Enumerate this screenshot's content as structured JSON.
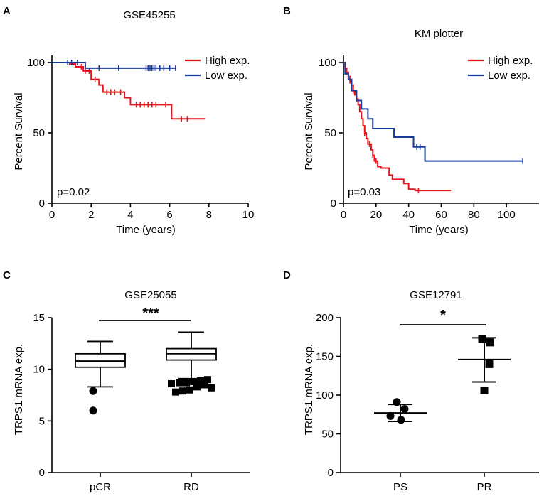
{
  "chart_data": [
    {
      "panel": "A",
      "type": "line",
      "subtype": "kaplan-meier",
      "title": "GSE45255",
      "xlabel": "Time (years)",
      "ylabel": "Percent Survival",
      "xlim": [
        0,
        10
      ],
      "ylim": [
        0,
        100
      ],
      "xticks": [
        "0",
        "2",
        "4",
        "6",
        "8",
        "10"
      ],
      "yticks": [
        "0",
        "50",
        "100"
      ],
      "xtick_values": [
        0,
        2,
        4,
        6,
        8,
        10
      ],
      "ytick_values": [
        0,
        50,
        100
      ],
      "annotation": "p=0.02",
      "legend_position": "top-right",
      "series": [
        {
          "name": "High exp.",
          "color": "#e8141c",
          "steps": [
            [
              0,
              100
            ],
            [
              0.9,
              99
            ],
            [
              1.2,
              97
            ],
            [
              1.6,
              94
            ],
            [
              2.0,
              88
            ],
            [
              2.4,
              84
            ],
            [
              2.6,
              79
            ],
            [
              3.0,
              79
            ],
            [
              3.7,
              75
            ],
            [
              4.0,
              70
            ],
            [
              5.5,
              70
            ],
            [
              6.1,
              60
            ],
            [
              7.8,
              60
            ]
          ],
          "censor_times": [
            1.5,
            1.7,
            1.9,
            2.2,
            2.8,
            3.0,
            3.2,
            3.5,
            4.3,
            4.5,
            4.7,
            4.9,
            5.1,
            5.3,
            5.8,
            6.6,
            6.9
          ]
        },
        {
          "name": "Low exp.",
          "color": "#1a3a99",
          "steps": [
            [
              0,
              100
            ],
            [
              1.6,
              100
            ],
            [
              1.7,
              96
            ],
            [
              6.3,
              96
            ]
          ],
          "censor_times": [
            0.8,
            1.0,
            1.3,
            2.4,
            3.4,
            4.8,
            4.9,
            5.0,
            5.1,
            5.2,
            5.3,
            5.5,
            5.7,
            6.0,
            6.3
          ]
        }
      ]
    },
    {
      "panel": "B",
      "type": "line",
      "subtype": "kaplan-meier",
      "title": "KM plotter",
      "xlabel": "Time (years)",
      "ylabel": "Percent Survival",
      "xlim": [
        0,
        120
      ],
      "ylim": [
        0,
        100
      ],
      "xticks": [
        "0",
        "20",
        "40",
        "60",
        "80",
        "100"
      ],
      "yticks": [
        "0",
        "50",
        "100"
      ],
      "xtick_values": [
        0,
        20,
        40,
        60,
        80,
        100
      ],
      "ytick_values": [
        0,
        50,
        100
      ],
      "annotation": "p=0.03",
      "legend_position": "top-right",
      "series": [
        {
          "name": "High exp.",
          "color": "#e8141c",
          "steps": [
            [
              0,
              100
            ],
            [
              1,
              96
            ],
            [
              2,
              93
            ],
            [
              3,
              90
            ],
            [
              4,
              87
            ],
            [
              5,
              84
            ],
            [
              6,
              80
            ],
            [
              7,
              77
            ],
            [
              8,
              74
            ],
            [
              9,
              70
            ],
            [
              10,
              65
            ],
            [
              11,
              60
            ],
            [
              12,
              55
            ],
            [
              13,
              50
            ],
            [
              14,
              46
            ],
            [
              15,
              42
            ],
            [
              17,
              38
            ],
            [
              18,
              34
            ],
            [
              19,
              30
            ],
            [
              21,
              26
            ],
            [
              23,
              25
            ],
            [
              28,
              20
            ],
            [
              30,
              17
            ],
            [
              37,
              14
            ],
            [
              40,
              10
            ],
            [
              44,
              9
            ],
            [
              66,
              9
            ]
          ],
          "censor_times": [
            4,
            6,
            8,
            13,
            16,
            18,
            20,
            46
          ]
        },
        {
          "name": "Low exp.",
          "color": "#1a3a99",
          "steps": [
            [
              0,
              100
            ],
            [
              1,
              92
            ],
            [
              3,
              88
            ],
            [
              5,
              80
            ],
            [
              8,
              73
            ],
            [
              11,
              67
            ],
            [
              15,
              60
            ],
            [
              18,
              53
            ],
            [
              30,
              53
            ],
            [
              31,
              47
            ],
            [
              40,
              47
            ],
            [
              43,
              40
            ],
            [
              48,
              40
            ],
            [
              50,
              30
            ],
            [
              110,
              30
            ]
          ],
          "censor_times": [
            45,
            47,
            110
          ]
        }
      ]
    },
    {
      "panel": "C",
      "type": "box",
      "title": "GSE25055",
      "ylabel": "TRPS1 mRNA exp.",
      "categories": [
        "pCR",
        "RD"
      ],
      "ylim": [
        0,
        15
      ],
      "yticks": [
        "0",
        "5",
        "10",
        "15"
      ],
      "ytick_values": [
        0,
        5,
        10,
        15
      ],
      "significance": "***",
      "boxes": [
        {
          "name": "pCR",
          "whisker_low": 8.3,
          "q1": 10.2,
          "median": 10.8,
          "q3": 11.5,
          "whisker_high": 12.7,
          "outliers": [
            7.9,
            6.0
          ]
        },
        {
          "name": "RD",
          "whisker_low": 9.1,
          "q1": 10.9,
          "median": 11.5,
          "q3": 12.0,
          "whisker_high": 13.6,
          "outliers": [
            7.8,
            7.9,
            8.0,
            8.3,
            8.5,
            8.6,
            8.7,
            8.7,
            8.8,
            8.9,
            9.0,
            8.2
          ]
        }
      ]
    },
    {
      "panel": "D",
      "type": "scatter",
      "subtype": "dot-plot-mean-sd",
      "title": "GSE12791",
      "ylabel": "TRPS1 mRNA exp.",
      "categories": [
        "PS",
        "PR"
      ],
      "ylim": [
        0,
        200
      ],
      "yticks": [
        "0",
        "50",
        "100",
        "150",
        "200"
      ],
      "ytick_values": [
        0,
        50,
        100,
        150,
        200
      ],
      "significance": "*",
      "groups": [
        {
          "name": "PS",
          "marker": "circle",
          "values": [
            91,
            82,
            73,
            68
          ],
          "mean": 77,
          "sd_low": 66,
          "sd_high": 88
        },
        {
          "name": "PR",
          "marker": "square",
          "values": [
            172,
            168,
            140,
            106
          ],
          "mean": 146,
          "sd_low": 117,
          "sd_high": 174
        }
      ]
    }
  ]
}
